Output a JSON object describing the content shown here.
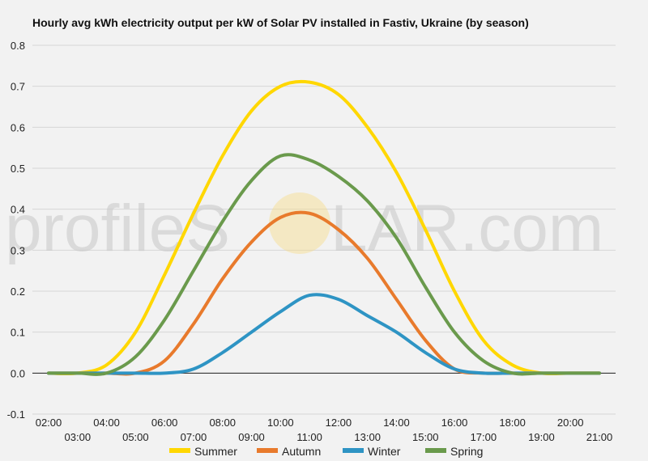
{
  "chart_data": {
    "type": "line",
    "title": "Hourly avg kWh electricity output per kW of Solar PV installed in Fastiv, Ukraine (by season)",
    "xlabel": "",
    "ylabel": "",
    "ylim": [
      -0.1,
      0.8
    ],
    "yticks": [
      "-0.1",
      "0.0",
      "0.1",
      "0.2",
      "0.3",
      "0.4",
      "0.5",
      "0.6",
      "0.7",
      "0.8"
    ],
    "x": [
      "02:00",
      "03:00",
      "04:00",
      "05:00",
      "06:00",
      "07:00",
      "08:00",
      "09:00",
      "10:00",
      "11:00",
      "12:00",
      "13:00",
      "14:00",
      "15:00",
      "16:00",
      "17:00",
      "18:00",
      "19:00",
      "20:00",
      "21:00"
    ],
    "grid": true,
    "legend_position": "bottom",
    "series": [
      {
        "name": "Summer",
        "color": "#FFD700",
        "values": [
          0,
          0,
          0.02,
          0.1,
          0.24,
          0.39,
          0.53,
          0.64,
          0.7,
          0.71,
          0.68,
          0.6,
          0.49,
          0.35,
          0.2,
          0.08,
          0.02,
          0,
          0,
          0
        ]
      },
      {
        "name": "Autumn",
        "color": "#E87A2C",
        "values": [
          0,
          0,
          0,
          0,
          0.03,
          0.12,
          0.23,
          0.32,
          0.38,
          0.39,
          0.35,
          0.28,
          0.18,
          0.08,
          0.01,
          0,
          0,
          0,
          0,
          0
        ]
      },
      {
        "name": "Winter",
        "color": "#2E94C4",
        "values": [
          0,
          0,
          0,
          0,
          0,
          0.01,
          0.05,
          0.1,
          0.15,
          0.19,
          0.18,
          0.14,
          0.1,
          0.05,
          0.01,
          0,
          0,
          0,
          0,
          0
        ]
      },
      {
        "name": "Spring",
        "color": "#6A9A4C",
        "values": [
          0,
          0,
          0,
          0.04,
          0.13,
          0.25,
          0.37,
          0.47,
          0.53,
          0.52,
          0.48,
          0.42,
          0.33,
          0.21,
          0.1,
          0.03,
          0,
          0,
          0,
          0
        ]
      }
    ]
  },
  "watermark": {
    "text_before": "profileS",
    "text_after": "LAR.com"
  }
}
